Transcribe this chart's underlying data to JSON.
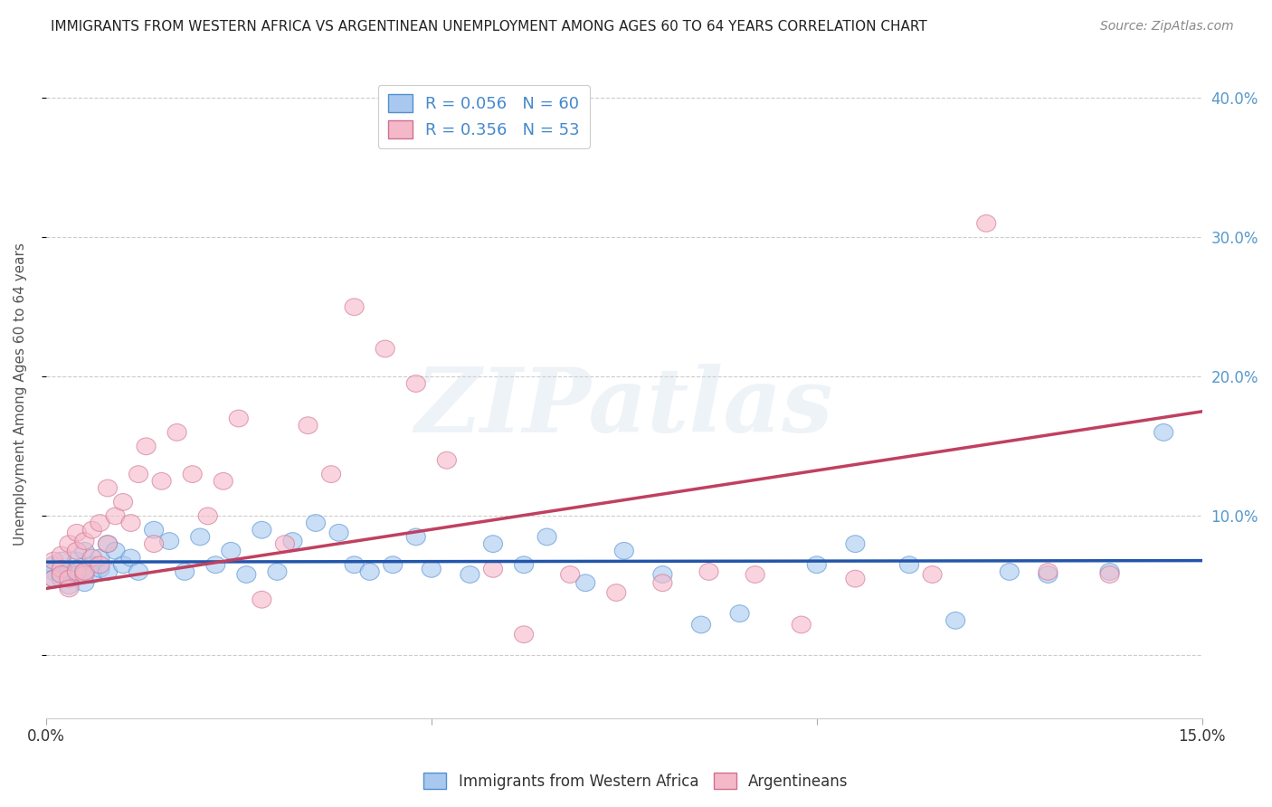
{
  "title": "IMMIGRANTS FROM WESTERN AFRICA VS ARGENTINEAN UNEMPLOYMENT AMONG AGES 60 TO 64 YEARS CORRELATION CHART",
  "source": "Source: ZipAtlas.com",
  "ylabel": "Unemployment Among Ages 60 to 64 years",
  "xlim": [
    0.0,
    0.15
  ],
  "ylim": [
    -0.045,
    0.42
  ],
  "xticks": [
    0.0,
    0.05,
    0.1,
    0.15
  ],
  "xticklabels": [
    "0.0%",
    "",
    "",
    "15.0%"
  ],
  "yticks_right": [
    0.0,
    0.1,
    0.2,
    0.3,
    0.4
  ],
  "yticklabels_right": [
    "",
    "10.0%",
    "20.0%",
    "30.0%",
    "40.0%"
  ],
  "blue_R": 0.056,
  "blue_N": 60,
  "pink_R": 0.356,
  "pink_N": 53,
  "blue_color": "#a8c8f0",
  "blue_edge_color": "#5090d0",
  "blue_line_color": "#2255aa",
  "pink_color": "#f5b8c8",
  "pink_edge_color": "#d07090",
  "pink_line_color": "#c04060",
  "blue_scatter_x": [
    0.001,
    0.001,
    0.001,
    0.002,
    0.002,
    0.002,
    0.002,
    0.003,
    0.003,
    0.003,
    0.004,
    0.004,
    0.004,
    0.005,
    0.005,
    0.005,
    0.006,
    0.006,
    0.007,
    0.007,
    0.008,
    0.008,
    0.009,
    0.01,
    0.011,
    0.012,
    0.014,
    0.016,
    0.018,
    0.02,
    0.022,
    0.024,
    0.026,
    0.028,
    0.03,
    0.032,
    0.035,
    0.038,
    0.04,
    0.042,
    0.045,
    0.048,
    0.05,
    0.055,
    0.058,
    0.062,
    0.065,
    0.07,
    0.075,
    0.08,
    0.085,
    0.09,
    0.1,
    0.105,
    0.112,
    0.118,
    0.125,
    0.13,
    0.138,
    0.145
  ],
  "blue_scatter_y": [
    0.065,
    0.06,
    0.055,
    0.068,
    0.058,
    0.062,
    0.055,
    0.06,
    0.055,
    0.05,
    0.068,
    0.062,
    0.058,
    0.075,
    0.06,
    0.052,
    0.065,
    0.058,
    0.07,
    0.062,
    0.08,
    0.06,
    0.075,
    0.065,
    0.07,
    0.06,
    0.09,
    0.082,
    0.06,
    0.085,
    0.065,
    0.075,
    0.058,
    0.09,
    0.06,
    0.082,
    0.095,
    0.088,
    0.065,
    0.06,
    0.065,
    0.085,
    0.062,
    0.058,
    0.08,
    0.065,
    0.085,
    0.052,
    0.075,
    0.058,
    0.022,
    0.03,
    0.065,
    0.08,
    0.065,
    0.025,
    0.06,
    0.058,
    0.06,
    0.16
  ],
  "pink_scatter_x": [
    0.001,
    0.001,
    0.002,
    0.002,
    0.002,
    0.003,
    0.003,
    0.003,
    0.004,
    0.004,
    0.004,
    0.005,
    0.005,
    0.005,
    0.006,
    0.006,
    0.007,
    0.007,
    0.008,
    0.008,
    0.009,
    0.01,
    0.011,
    0.012,
    0.013,
    0.014,
    0.015,
    0.017,
    0.019,
    0.021,
    0.023,
    0.025,
    0.028,
    0.031,
    0.034,
    0.037,
    0.04,
    0.044,
    0.048,
    0.052,
    0.058,
    0.062,
    0.068,
    0.074,
    0.08,
    0.086,
    0.092,
    0.098,
    0.105,
    0.115,
    0.122,
    0.13,
    0.138
  ],
  "pink_scatter_y": [
    0.068,
    0.055,
    0.072,
    0.062,
    0.058,
    0.08,
    0.055,
    0.048,
    0.088,
    0.06,
    0.075,
    0.058,
    0.082,
    0.06,
    0.09,
    0.07,
    0.095,
    0.065,
    0.12,
    0.08,
    0.1,
    0.11,
    0.095,
    0.13,
    0.15,
    0.08,
    0.125,
    0.16,
    0.13,
    0.1,
    0.125,
    0.17,
    0.04,
    0.08,
    0.165,
    0.13,
    0.25,
    0.22,
    0.195,
    0.14,
    0.062,
    0.015,
    0.058,
    0.045,
    0.052,
    0.06,
    0.058,
    0.022,
    0.055,
    0.058,
    0.31,
    0.06,
    0.058
  ],
  "blue_trendline": [
    0.067,
    0.068
  ],
  "pink_trendline": [
    0.048,
    0.175
  ],
  "watermark_text": "ZIPatlas",
  "background_color": "#ffffff",
  "grid_color": "#cccccc",
  "title_fontsize": 11,
  "source_fontsize": 10,
  "axis_label_fontsize": 11,
  "tick_fontsize": 12,
  "legend_fontsize": 13
}
